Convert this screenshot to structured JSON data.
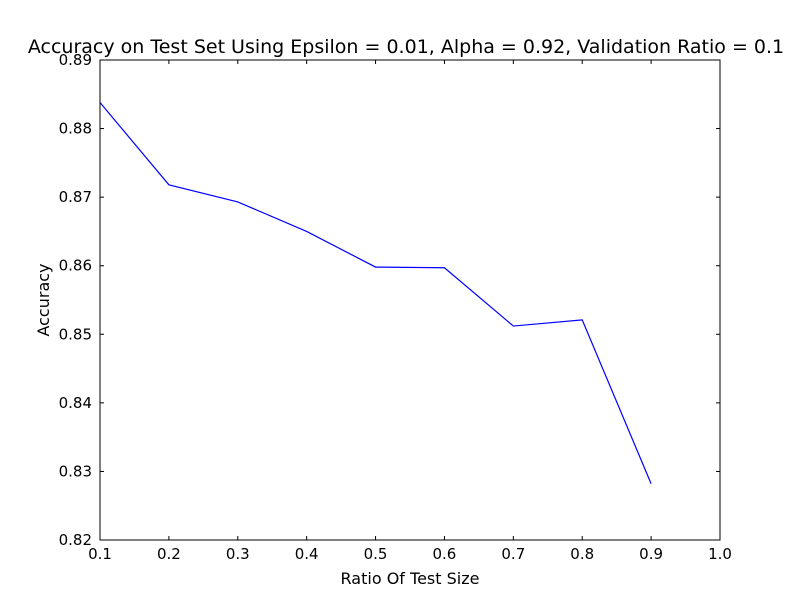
{
  "chart_data": {
    "type": "line",
    "title": "Accuracy on Test Set Using Epsilon = 0.01, Alpha = 0.92, Validation Ratio = 0.1",
    "xlabel": "Ratio Of Test Size",
    "ylabel": "Accuracy",
    "xlim": [
      0.1,
      1.0
    ],
    "ylim": [
      0.82,
      0.89
    ],
    "xticks": [
      0.1,
      0.2,
      0.3,
      0.4,
      0.5,
      0.6,
      0.7,
      0.8,
      0.9,
      1.0
    ],
    "xtick_labels": [
      "0.1",
      "0.2",
      "0.3",
      "0.4",
      "0.5",
      "0.6",
      "0.7",
      "0.8",
      "0.9",
      "1.0"
    ],
    "yticks": [
      0.82,
      0.83,
      0.84,
      0.85,
      0.86,
      0.87,
      0.88,
      0.89
    ],
    "ytick_labels": [
      "0.82",
      "0.83",
      "0.84",
      "0.85",
      "0.86",
      "0.87",
      "0.88",
      "0.89"
    ],
    "grid": false,
    "series": [
      {
        "color": "#0000ff",
        "x": [
          0.1,
          0.2,
          0.3,
          0.4,
          0.5,
          0.6,
          0.7,
          0.8,
          0.9
        ],
        "y": [
          0.8838,
          0.8718,
          0.8693,
          0.865,
          0.8598,
          0.8597,
          0.8512,
          0.8521,
          0.8282
        ]
      }
    ]
  }
}
